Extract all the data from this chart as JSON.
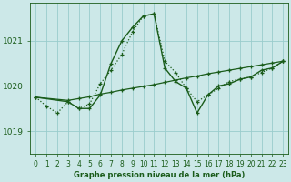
{
  "title": "Graphe pression niveau de la mer (hPa)",
  "background_color": "#cce8e8",
  "grid_color": "#99cccc",
  "line_color": "#1a5c1a",
  "xlim": [
    -0.5,
    23.5
  ],
  "ylim": [
    1018.5,
    1021.85
  ],
  "yticks": [
    1019,
    1020,
    1021
  ],
  "xticks": [
    0,
    1,
    2,
    3,
    4,
    5,
    6,
    7,
    8,
    9,
    10,
    11,
    12,
    13,
    14,
    15,
    16,
    17,
    18,
    19,
    20,
    21,
    22,
    23
  ],
  "series": [
    {
      "x": [
        0,
        1,
        2,
        3,
        4,
        5,
        6,
        7,
        8,
        9,
        10,
        11,
        12,
        13,
        14,
        15,
        16,
        17,
        18,
        19,
        20,
        21,
        22,
        23
      ],
      "y": [
        1019.75,
        1019.55,
        1019.4,
        1019.65,
        1019.5,
        1019.6,
        1020.05,
        1020.35,
        1020.7,
        1021.2,
        1021.55,
        1021.6,
        1020.55,
        1020.3,
        1019.95,
        1019.65,
        1019.8,
        1019.95,
        1020.1,
        1020.15,
        1020.2,
        1020.3,
        1020.4,
        1020.55
      ],
      "style": "dotted",
      "lw": 0.9
    },
    {
      "x": [
        0,
        3,
        4,
        5,
        6,
        7,
        8,
        9,
        10,
        11,
        12,
        13,
        14,
        15,
        16,
        17,
        18,
        19,
        20,
        21,
        22,
        23
      ],
      "y": [
        1019.75,
        1019.65,
        1019.5,
        1019.5,
        1019.8,
        1020.5,
        1021.0,
        1021.3,
        1021.55,
        1021.6,
        1020.4,
        1020.1,
        1019.95,
        1019.4,
        1019.8,
        1020.0,
        1020.05,
        1020.15,
        1020.2,
        1020.35,
        1020.4,
        1020.55
      ],
      "style": "solid",
      "lw": 1.0
    },
    {
      "x": [
        0,
        3,
        4,
        5,
        6,
        7,
        8,
        9,
        10,
        11,
        12,
        13,
        14,
        15,
        16,
        17,
        18,
        19,
        20,
        21,
        22,
        23
      ],
      "y": [
        1019.75,
        1019.68,
        1019.72,
        1019.76,
        1019.82,
        1019.86,
        1019.91,
        1019.95,
        1019.99,
        1020.03,
        1020.08,
        1020.13,
        1020.18,
        1020.22,
        1020.27,
        1020.31,
        1020.35,
        1020.39,
        1020.43,
        1020.47,
        1020.51,
        1020.55
      ],
      "style": "solid",
      "lw": 0.9
    }
  ]
}
